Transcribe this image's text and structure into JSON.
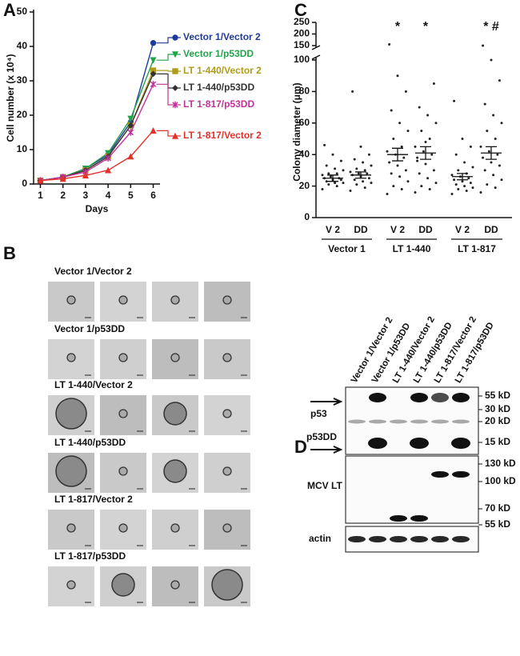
{
  "panel_letters": [
    "A",
    "B",
    "C",
    "D"
  ],
  "chart_data": [
    {
      "type": "line",
      "y_label": "Cell number (x 10⁴)",
      "x_label": "Days",
      "x": [
        1,
        2,
        3,
        4,
        5,
        6
      ],
      "xlim": [
        0.7,
        6.3
      ],
      "xticks": [
        1,
        2,
        3,
        4,
        5,
        6
      ],
      "ylim": [
        0,
        50
      ],
      "yticks": [
        0,
        10,
        20,
        30,
        40,
        50
      ],
      "series": [
        {
          "name": "Vector 1/Vector 2",
          "color": "#1f3c99",
          "marker": "circle",
          "values": [
            1,
            2,
            4.5,
            8.5,
            18,
            41
          ]
        },
        {
          "name": "Vector 1/p53DD",
          "color": "#23a34a",
          "marker": "triangle-down",
          "values": [
            1,
            2,
            4.5,
            9,
            19,
            36
          ]
        },
        {
          "name": "LT 1-440/Vector 2",
          "color": "#b09c18",
          "marker": "square",
          "values": [
            1,
            2,
            4,
            8,
            17,
            33
          ]
        },
        {
          "name": "LT 1-440/p53DD",
          "color": "#333333",
          "marker": "diamond",
          "values": [
            1,
            2,
            4,
            8,
            17,
            32
          ]
        },
        {
          "name": "LT 1-817/p53DD",
          "color": "#c2339a",
          "marker": "cross",
          "values": [
            1,
            2,
            3.5,
            7.5,
            15,
            29
          ]
        },
        {
          "name": "LT 1-817/Vector 2",
          "color": "#e5312a",
          "marker": "triangle-up",
          "values": [
            1,
            1.5,
            2.5,
            4,
            8,
            15.5
          ]
        }
      ]
    },
    {
      "type": "dot",
      "y_label": "Colony diameter (μm)",
      "categories": [
        "V 2",
        "DD",
        "V 2",
        "DD",
        "V 2",
        "DD"
      ],
      "groups": [
        "Vector 1",
        "LT 1-440",
        "LT 1-817"
      ],
      "ylim": [
        0,
        100
      ],
      "yticks": [
        0,
        20,
        40,
        60,
        80,
        100
      ],
      "upper_ylim": [
        150,
        250
      ],
      "upper_yticks": [
        150,
        200,
        250
      ],
      "annotations": [
        "",
        "",
        "*",
        "*",
        "",
        "* #"
      ],
      "means": [
        25,
        27,
        40,
        41,
        26,
        41
      ],
      "errors": [
        2,
        2,
        4,
        4,
        2,
        4
      ],
      "points": [
        [
          18,
          20,
          21,
          22,
          22,
          23,
          24,
          24,
          25,
          25,
          26,
          27,
          28,
          28,
          30,
          31,
          33,
          36,
          40,
          46
        ],
        [
          17,
          19,
          21,
          22,
          23,
          24,
          25,
          26,
          27,
          28,
          28,
          29,
          30,
          31,
          33,
          35,
          37,
          40,
          45,
          80
        ],
        [
          15,
          18,
          20,
          23,
          26,
          28,
          30,
          33,
          35,
          38,
          40,
          42,
          45,
          50,
          55,
          60,
          68,
          80,
          90,
          155
        ],
        [
          16,
          18,
          20,
          22,
          25,
          28,
          30,
          34,
          38,
          40,
          42,
          45,
          50,
          55,
          60,
          65,
          70,
          85,
          48,
          36
        ],
        [
          15,
          17,
          18,
          19,
          20,
          21,
          22,
          23,
          24,
          25,
          26,
          27,
          28,
          30,
          32,
          35,
          40,
          45,
          50,
          74
        ],
        [
          16,
          19,
          21,
          24,
          27,
          30,
          33,
          35,
          38,
          40,
          42,
          45,
          50,
          55,
          60,
          65,
          72,
          87,
          100,
          150
        ]
      ]
    }
  ],
  "micrographs": {
    "rows": [
      "Vector 1/Vector 2",
      "Vector 1/p53DD",
      "LT 1-440/Vector 2",
      "LT 1-440/p53DD",
      "LT 1-817/Vector 2",
      "LT 1-817/p53DD"
    ]
  },
  "blot": {
    "lanes": [
      "Vector 1/Vector 2",
      "Vector 1/p53DD",
      "LT 1-440/Vector 2",
      "LT 1-440/p53DD",
      "LT 1-817/Vector 2",
      "LT 1-817/p53DD"
    ],
    "bands": [
      "p53",
      "p53DD",
      "MCV LT",
      "actin"
    ],
    "markers_top": [
      "55 kD",
      "30 kD",
      "20 kD",
      "15 kD"
    ],
    "markers_mid": [
      "130 kD",
      "100 kD",
      "70 kD",
      "55 kD"
    ]
  }
}
